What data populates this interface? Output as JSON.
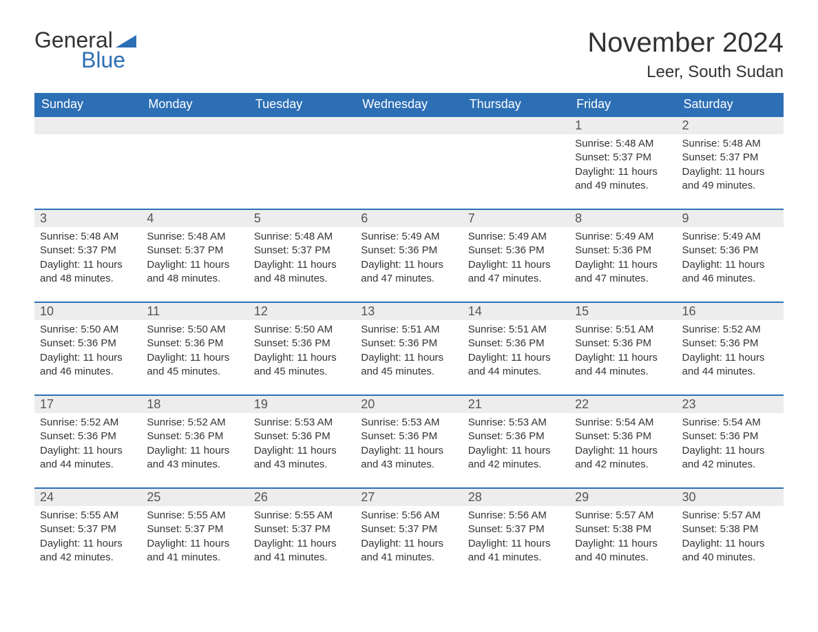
{
  "logo": {
    "text_general": "General",
    "text_blue": "Blue",
    "brand_color": "#2d6fb5"
  },
  "title": "November 2024",
  "location": "Leer, South Sudan",
  "colors": {
    "header_bg": "#2d6fb5",
    "header_text": "#ffffff",
    "daynum_bg": "#ededed",
    "daynum_text": "#555555",
    "body_text": "#333333",
    "rule": "#2d6fb5",
    "page_bg": "#ffffff"
  },
  "typography": {
    "title_fontsize": 40,
    "location_fontsize": 24,
    "dow_fontsize": 18,
    "daynum_fontsize": 18,
    "body_fontsize": 15,
    "font_family": "Arial"
  },
  "days_of_week": [
    "Sunday",
    "Monday",
    "Tuesday",
    "Wednesday",
    "Thursday",
    "Friday",
    "Saturday"
  ],
  "weeks": [
    [
      {
        "day": "",
        "sunrise": "",
        "sunset": "",
        "daylight": ""
      },
      {
        "day": "",
        "sunrise": "",
        "sunset": "",
        "daylight": ""
      },
      {
        "day": "",
        "sunrise": "",
        "sunset": "",
        "daylight": ""
      },
      {
        "day": "",
        "sunrise": "",
        "sunset": "",
        "daylight": ""
      },
      {
        "day": "",
        "sunrise": "",
        "sunset": "",
        "daylight": ""
      },
      {
        "day": "1",
        "sunrise": "Sunrise: 5:48 AM",
        "sunset": "Sunset: 5:37 PM",
        "daylight": "Daylight: 11 hours and 49 minutes."
      },
      {
        "day": "2",
        "sunrise": "Sunrise: 5:48 AM",
        "sunset": "Sunset: 5:37 PM",
        "daylight": "Daylight: 11 hours and 49 minutes."
      }
    ],
    [
      {
        "day": "3",
        "sunrise": "Sunrise: 5:48 AM",
        "sunset": "Sunset: 5:37 PM",
        "daylight": "Daylight: 11 hours and 48 minutes."
      },
      {
        "day": "4",
        "sunrise": "Sunrise: 5:48 AM",
        "sunset": "Sunset: 5:37 PM",
        "daylight": "Daylight: 11 hours and 48 minutes."
      },
      {
        "day": "5",
        "sunrise": "Sunrise: 5:48 AM",
        "sunset": "Sunset: 5:37 PM",
        "daylight": "Daylight: 11 hours and 48 minutes."
      },
      {
        "day": "6",
        "sunrise": "Sunrise: 5:49 AM",
        "sunset": "Sunset: 5:36 PM",
        "daylight": "Daylight: 11 hours and 47 minutes."
      },
      {
        "day": "7",
        "sunrise": "Sunrise: 5:49 AM",
        "sunset": "Sunset: 5:36 PM",
        "daylight": "Daylight: 11 hours and 47 minutes."
      },
      {
        "day": "8",
        "sunrise": "Sunrise: 5:49 AM",
        "sunset": "Sunset: 5:36 PM",
        "daylight": "Daylight: 11 hours and 47 minutes."
      },
      {
        "day": "9",
        "sunrise": "Sunrise: 5:49 AM",
        "sunset": "Sunset: 5:36 PM",
        "daylight": "Daylight: 11 hours and 46 minutes."
      }
    ],
    [
      {
        "day": "10",
        "sunrise": "Sunrise: 5:50 AM",
        "sunset": "Sunset: 5:36 PM",
        "daylight": "Daylight: 11 hours and 46 minutes."
      },
      {
        "day": "11",
        "sunrise": "Sunrise: 5:50 AM",
        "sunset": "Sunset: 5:36 PM",
        "daylight": "Daylight: 11 hours and 45 minutes."
      },
      {
        "day": "12",
        "sunrise": "Sunrise: 5:50 AM",
        "sunset": "Sunset: 5:36 PM",
        "daylight": "Daylight: 11 hours and 45 minutes."
      },
      {
        "day": "13",
        "sunrise": "Sunrise: 5:51 AM",
        "sunset": "Sunset: 5:36 PM",
        "daylight": "Daylight: 11 hours and 45 minutes."
      },
      {
        "day": "14",
        "sunrise": "Sunrise: 5:51 AM",
        "sunset": "Sunset: 5:36 PM",
        "daylight": "Daylight: 11 hours and 44 minutes."
      },
      {
        "day": "15",
        "sunrise": "Sunrise: 5:51 AM",
        "sunset": "Sunset: 5:36 PM",
        "daylight": "Daylight: 11 hours and 44 minutes."
      },
      {
        "day": "16",
        "sunrise": "Sunrise: 5:52 AM",
        "sunset": "Sunset: 5:36 PM",
        "daylight": "Daylight: 11 hours and 44 minutes."
      }
    ],
    [
      {
        "day": "17",
        "sunrise": "Sunrise: 5:52 AM",
        "sunset": "Sunset: 5:36 PM",
        "daylight": "Daylight: 11 hours and 44 minutes."
      },
      {
        "day": "18",
        "sunrise": "Sunrise: 5:52 AM",
        "sunset": "Sunset: 5:36 PM",
        "daylight": "Daylight: 11 hours and 43 minutes."
      },
      {
        "day": "19",
        "sunrise": "Sunrise: 5:53 AM",
        "sunset": "Sunset: 5:36 PM",
        "daylight": "Daylight: 11 hours and 43 minutes."
      },
      {
        "day": "20",
        "sunrise": "Sunrise: 5:53 AM",
        "sunset": "Sunset: 5:36 PM",
        "daylight": "Daylight: 11 hours and 43 minutes."
      },
      {
        "day": "21",
        "sunrise": "Sunrise: 5:53 AM",
        "sunset": "Sunset: 5:36 PM",
        "daylight": "Daylight: 11 hours and 42 minutes."
      },
      {
        "day": "22",
        "sunrise": "Sunrise: 5:54 AM",
        "sunset": "Sunset: 5:36 PM",
        "daylight": "Daylight: 11 hours and 42 minutes."
      },
      {
        "day": "23",
        "sunrise": "Sunrise: 5:54 AM",
        "sunset": "Sunset: 5:36 PM",
        "daylight": "Daylight: 11 hours and 42 minutes."
      }
    ],
    [
      {
        "day": "24",
        "sunrise": "Sunrise: 5:55 AM",
        "sunset": "Sunset: 5:37 PM",
        "daylight": "Daylight: 11 hours and 42 minutes."
      },
      {
        "day": "25",
        "sunrise": "Sunrise: 5:55 AM",
        "sunset": "Sunset: 5:37 PM",
        "daylight": "Daylight: 11 hours and 41 minutes."
      },
      {
        "day": "26",
        "sunrise": "Sunrise: 5:55 AM",
        "sunset": "Sunset: 5:37 PM",
        "daylight": "Daylight: 11 hours and 41 minutes."
      },
      {
        "day": "27",
        "sunrise": "Sunrise: 5:56 AM",
        "sunset": "Sunset: 5:37 PM",
        "daylight": "Daylight: 11 hours and 41 minutes."
      },
      {
        "day": "28",
        "sunrise": "Sunrise: 5:56 AM",
        "sunset": "Sunset: 5:37 PM",
        "daylight": "Daylight: 11 hours and 41 minutes."
      },
      {
        "day": "29",
        "sunrise": "Sunrise: 5:57 AM",
        "sunset": "Sunset: 5:38 PM",
        "daylight": "Daylight: 11 hours and 40 minutes."
      },
      {
        "day": "30",
        "sunrise": "Sunrise: 5:57 AM",
        "sunset": "Sunset: 5:38 PM",
        "daylight": "Daylight: 11 hours and 40 minutes."
      }
    ]
  ]
}
